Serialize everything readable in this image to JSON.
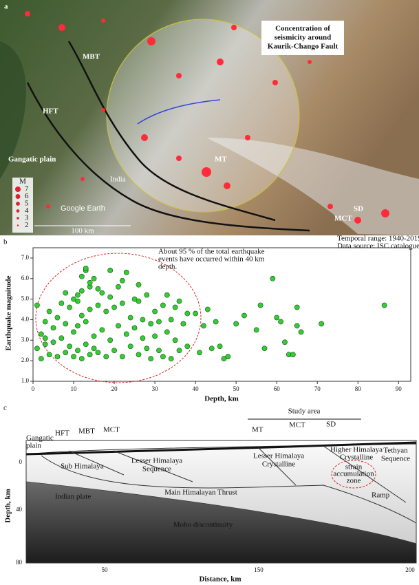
{
  "panel_a": {
    "label": "a",
    "callout": [
      "Concentration of",
      "seismicity around",
      "Kaurik-Chango Fault"
    ],
    "faults": [
      "MBT",
      "HFT",
      "MT",
      "SD",
      "MCT"
    ],
    "place_labels": [
      "Gangatic plain",
      "India"
    ],
    "watermark": "Google Earth",
    "scale": "100 km",
    "legend_title": "M",
    "legend_items": [
      "7",
      "6",
      "5",
      "4",
      "3",
      "2"
    ]
  },
  "chart_data": {
    "type": "scatter",
    "label": "b",
    "notes": [
      "Temporal range: 1940-2019",
      "Data source: ISC catalogue"
    ],
    "annotation": [
      "About 95 % of the total earthquake",
      "events have occurred within 40 km",
      "depth."
    ],
    "xlabel": "Depth, km",
    "ylabel": "Earthquake magnitude",
    "color": "#33cc33",
    "xlim": [
      0,
      93
    ],
    "ylim": [
      1,
      7.5
    ],
    "xticks": [
      0,
      10,
      20,
      30,
      40,
      50,
      60,
      70,
      80,
      90
    ],
    "yticks": [
      {
        "value": 1,
        "label": "1.0"
      },
      {
        "value": 2,
        "label": "2.0"
      },
      {
        "value": 3,
        "label": "3.0"
      },
      {
        "value": 4,
        "label": "4.0"
      },
      {
        "value": 5,
        "label": "5.0"
      },
      {
        "value": 6,
        "label": "6.0"
      },
      {
        "value": 7,
        "label": "7.0"
      }
    ],
    "x": [
      1,
      1,
      2,
      2,
      3,
      3,
      4,
      4,
      5,
      5,
      6,
      6,
      7,
      7,
      8,
      8,
      9,
      9,
      10,
      10,
      10,
      11,
      11,
      11,
      12,
      12,
      12,
      13,
      13,
      13,
      14,
      14,
      14,
      15,
      15,
      15,
      16,
      16,
      17,
      17,
      18,
      18,
      19,
      19,
      20,
      20,
      21,
      21,
      22,
      22,
      23,
      23,
      24,
      24,
      25,
      25,
      26,
      26,
      27,
      27,
      28,
      28,
      29,
      29,
      30,
      30,
      31,
      31,
      32,
      32,
      33,
      33,
      34,
      34,
      35,
      35,
      36,
      37,
      38,
      38,
      13,
      14,
      16,
      12,
      19,
      22,
      26,
      11,
      8,
      3,
      40,
      41,
      42,
      43,
      44,
      45,
      46,
      47,
      48,
      50,
      52,
      55,
      56,
      57,
      59,
      60,
      61,
      62,
      63,
      64,
      65,
      65,
      66,
      71,
      86.5,
      36
    ],
    "y": [
      2.6,
      4.7,
      3.3,
      2.1,
      3.9,
      2.8,
      4.4,
      2.3,
      3.6,
      2.9,
      4.1,
      2.2,
      4.8,
      3.1,
      2.4,
      3.8,
      4.6,
      2.7,
      5.0,
      3.4,
      2.2,
      4.9,
      3.7,
      2.5,
      5.4,
      4.2,
      2.1,
      6.4,
      3.9,
      2.8,
      5.6,
      4.5,
      2.3,
      6.0,
      3.2,
      2.6,
      4.7,
      2.4,
      5.3,
      3.5,
      4.4,
      2.2,
      5.1,
      3.0,
      4.6,
      2.5,
      5.6,
      3.7,
      4.8,
      2.2,
      6.3,
      3.3,
      4.1,
      2.7,
      5.0,
      3.6,
      4.9,
      2.3,
      4.0,
      3.1,
      5.2,
      2.6,
      3.8,
      2.1,
      4.4,
      3.2,
      3.9,
      2.5,
      4.7,
      2.2,
      5.2,
      3.4,
      4.0,
      2.1,
      4.6,
      3.0,
      2.5,
      3.8,
      2.7,
      4.3,
      6.5,
      5.8,
      5.5,
      6.1,
      6.4,
      5.9,
      5.7,
      5.2,
      5.3,
      3.1,
      4.3,
      2.4,
      3.7,
      4.5,
      2.6,
      3.9,
      2.7,
      2.1,
      2.2,
      3.8,
      4.2,
      3.5,
      4.7,
      2.6,
      6.0,
      4.1,
      3.9,
      2.9,
      2.3,
      2.3,
      3.7,
      4.6,
      3.4,
      3.8,
      4.7,
      4.9
    ]
  },
  "panel_c": {
    "label": "c",
    "study_area": "Study area",
    "faults": [
      "HFT",
      "MBT",
      "MCT",
      "MT",
      "MCT",
      "SD"
    ],
    "gangatic": [
      "Gangatic",
      "plain"
    ],
    "units": [
      "Sub Himalaya",
      "Lesser Himalaya",
      "Sequence",
      "Lesser Himalaya",
      "Crystalline",
      "Higher Himalaya",
      "Crystalline",
      "Tethyan",
      "Sequence"
    ],
    "zone": [
      "strain",
      "accumulation",
      "zone"
    ],
    "layers": [
      "Indian plate",
      "Main Himalayan Thrust",
      "Ramp",
      "Moho discontinuity"
    ],
    "ylabel": "Depth, km",
    "xlabel": "Distance, km",
    "yticks": [
      "0",
      "40",
      "80"
    ],
    "xticks": [
      "50",
      "150",
      "200"
    ]
  }
}
